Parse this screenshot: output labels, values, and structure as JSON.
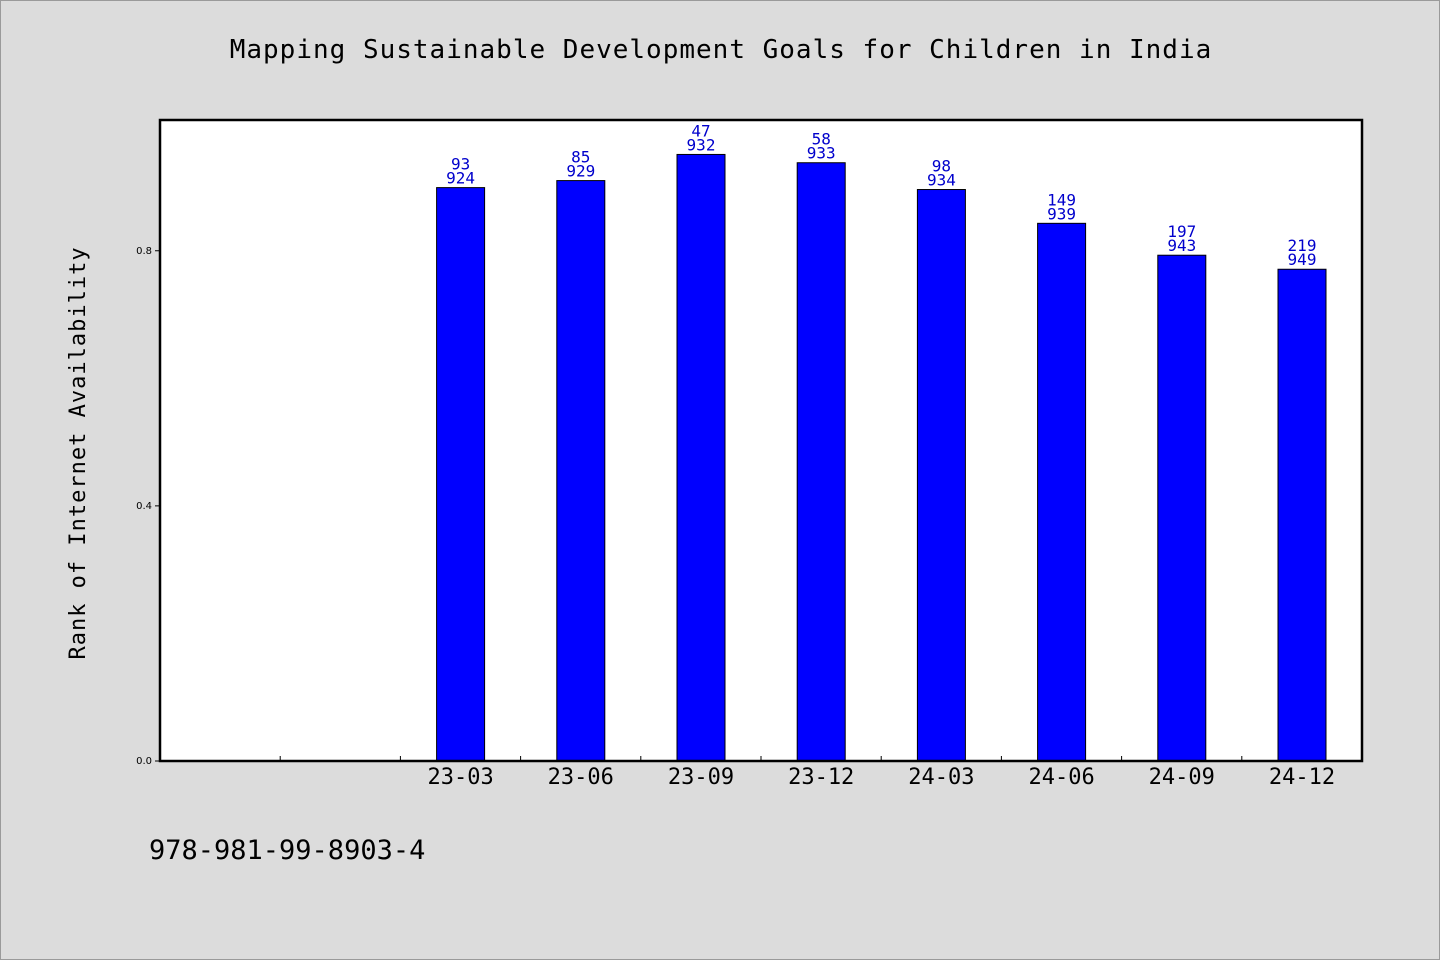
{
  "chart_data": {
    "type": "bar",
    "title": "Mapping Sustainable Development Goals for Children in India",
    "ylabel": "Rank of Internet Availability",
    "xlabel": "",
    "categories": [
      "",
      "",
      "23-03",
      "23-06",
      "23-09",
      "23-12",
      "24-03",
      "24-06",
      "24-09",
      "24-12"
    ],
    "values": [
      null,
      null,
      0.899,
      0.91,
      0.951,
      0.938,
      0.896,
      0.843,
      0.793,
      0.771
    ],
    "bar_labels": [
      null,
      null,
      [
        "93",
        "924"
      ],
      [
        "85",
        "929"
      ],
      [
        "47",
        "932"
      ],
      [
        "58",
        "933"
      ],
      [
        "98",
        "934"
      ],
      [
        "149",
        "939"
      ],
      [
        "197",
        "943"
      ],
      [
        "219",
        "949"
      ]
    ],
    "yticks": [
      "0.0",
      "0.4",
      "0.8"
    ],
    "ytick_values": [
      0.0,
      0.4,
      0.8
    ],
    "ylim": [
      0,
      1.005
    ],
    "bar_color": "#0000ff",
    "label_color": "#0000cc",
    "grid": false,
    "legend": "none"
  },
  "footer": {
    "text": "978-981-99-8903-4"
  }
}
